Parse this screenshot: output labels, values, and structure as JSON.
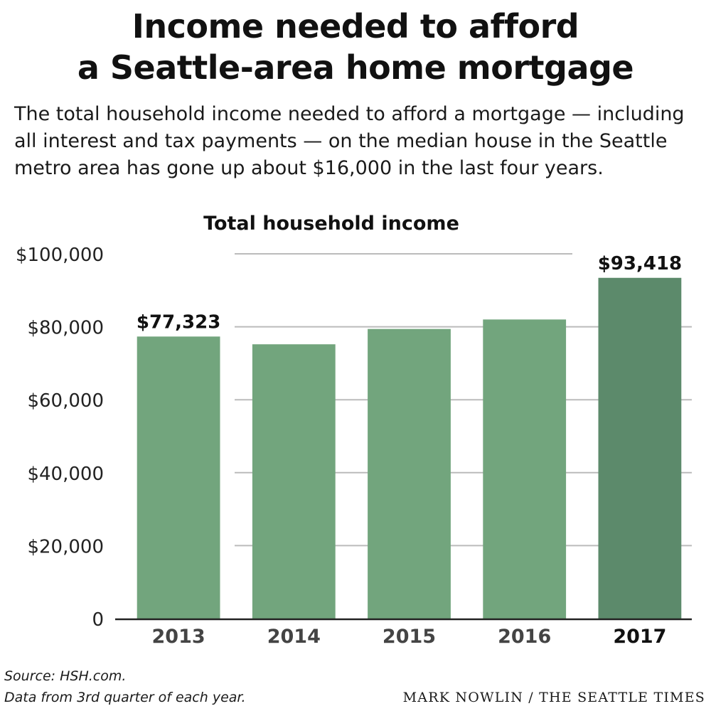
{
  "header": {
    "title_line1": "Income needed to afford",
    "title_line2": "a Seattle-area home mortgage",
    "subtitle": "The total household income needed to afford a mortgage — including all interest and tax payments — on the median house in the Seattle metro area has gone up about $16,000 in the last four years."
  },
  "chart_data": {
    "type": "bar",
    "title": "Total household income",
    "xlabel": "",
    "ylabel": "",
    "categories": [
      "2013",
      "2014",
      "2015",
      "2016",
      "2017"
    ],
    "values": [
      77323,
      75200,
      79400,
      82000,
      93418
    ],
    "ylim": [
      0,
      100000
    ],
    "yticks": [
      0,
      20000,
      40000,
      60000,
      80000,
      100000
    ],
    "ytick_labels": [
      "0",
      "$20,000",
      "$40,000",
      "$60,000",
      "$80,000",
      "$100,000"
    ],
    "data_labels": [
      "$77,323",
      "",
      "",
      "",
      "$93,418"
    ],
    "highlight_category": "2017",
    "grid": true,
    "colors": {
      "bar": "#72a57d",
      "highlight_bar": "#5c8a6b",
      "grid": "#bbbbbb",
      "axis": "#222222",
      "tick_label": "#444444",
      "highlight_tick_label": "#111111"
    }
  },
  "footer": {
    "source_line1": "Source: HSH.com.",
    "source_line2": "Data from 3rd quarter of each year.",
    "credit": "MARK NOWLIN / THE SEATTLE TIMES"
  }
}
